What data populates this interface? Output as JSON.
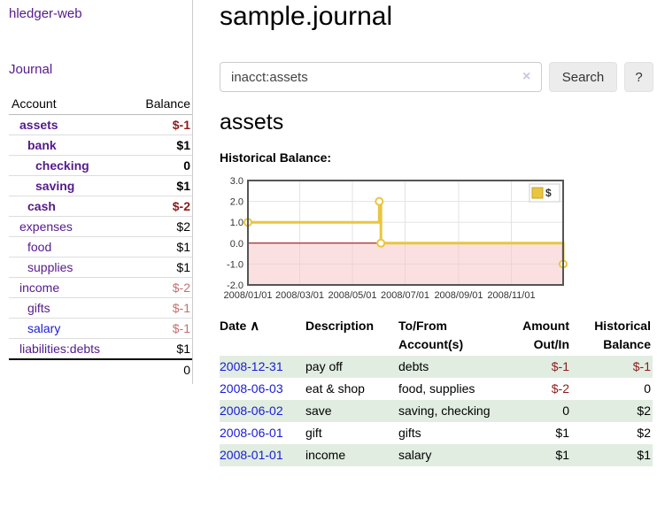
{
  "app": {
    "title": "hledger-web"
  },
  "sidebar": {
    "journal_label": "Journal",
    "accounts_table": {
      "headers": {
        "account": "Account",
        "balance": "Balance"
      },
      "rows": [
        {
          "name": "assets",
          "balance": "$-1"
        },
        {
          "name": "bank",
          "balance": "$1"
        },
        {
          "name": "checking",
          "balance": "0"
        },
        {
          "name": "saving",
          "balance": "$1"
        },
        {
          "name": "cash",
          "balance": "$-2"
        },
        {
          "name": "expenses",
          "balance": "$2"
        },
        {
          "name": "food",
          "balance": "$1"
        },
        {
          "name": "supplies",
          "balance": "$1"
        },
        {
          "name": "income",
          "balance": "$-2"
        },
        {
          "name": "gifts",
          "balance": "$-1"
        },
        {
          "name": "salary",
          "balance": "$-1"
        },
        {
          "name": "liabilities:debts",
          "balance": "$1"
        }
      ],
      "total": "0"
    }
  },
  "main": {
    "title": "sample.journal",
    "search": {
      "value": "inacct:assets",
      "clear_icon": "×",
      "button_label": "Search",
      "help_label": "?"
    },
    "account_heading": "assets",
    "chart_heading": "Historical Balance:",
    "register_table": {
      "headers": {
        "date": "Date",
        "sort_icon": "∧",
        "description": "Description",
        "tofrom": "To/From Account(s)",
        "amount": "Amount Out/In",
        "balance": "Historical Balance"
      },
      "rows": [
        {
          "date": "2008-12-31",
          "description": "pay off",
          "accounts": "debts",
          "amount": "$-1",
          "balance": "$-1"
        },
        {
          "date": "2008-06-03",
          "description": "eat & shop",
          "accounts": "food, supplies",
          "amount": "$-2",
          "balance": "0"
        },
        {
          "date": "2008-06-02",
          "description": "save",
          "accounts": "saving, checking",
          "amount": "0",
          "balance": "$2"
        },
        {
          "date": "2008-06-01",
          "description": "gift",
          "accounts": "gifts",
          "amount": "$1",
          "balance": "$2"
        },
        {
          "date": "2008-01-01",
          "description": "income",
          "accounts": "salary",
          "amount": "$1",
          "balance": "$1"
        }
      ]
    }
  },
  "colors": {
    "link_purple": "#551a8b",
    "link_blue": "#1a1ad8",
    "negative_strong": "#8b1c1c",
    "negative_soft": "#c46f6f",
    "row_stripe_green": "#e1ede1",
    "chart_line_gold": "#e8c63f",
    "chart_negative_pink": "#f5c6c6",
    "chart_zero_line": "#8b0000"
  },
  "chart_data": {
    "type": "line",
    "step": true,
    "title": "Historical Balance",
    "ylim": [
      -2,
      3
    ],
    "yticks": [
      3.0,
      2.0,
      1.0,
      0.0,
      -1.0,
      -2.0
    ],
    "xticks": [
      "2008/01/01",
      "2008/03/01",
      "2008/05/01",
      "2008/07/01",
      "2008/09/01",
      "2008/11/01"
    ],
    "xrange": [
      "2008-01-01",
      "2008-12-31"
    ],
    "grid": true,
    "legend_position": "top-right",
    "negative_fill": "#f5c6c6",
    "zero_line_color": "#8b0000",
    "series": [
      {
        "name": "$",
        "color": "#e8c63f",
        "points": [
          [
            "2008-01-01",
            1
          ],
          [
            "2008-06-01",
            1
          ],
          [
            "2008-06-01",
            2
          ],
          [
            "2008-06-03",
            2
          ],
          [
            "2008-06-03",
            0
          ],
          [
            "2008-12-31",
            0
          ],
          [
            "2008-12-31",
            -1
          ]
        ],
        "markers": [
          [
            "2008-01-01",
            1
          ],
          [
            "2008-06-01",
            2
          ],
          [
            "2008-06-03",
            0
          ],
          [
            "2008-12-31",
            -1
          ]
        ]
      }
    ]
  }
}
